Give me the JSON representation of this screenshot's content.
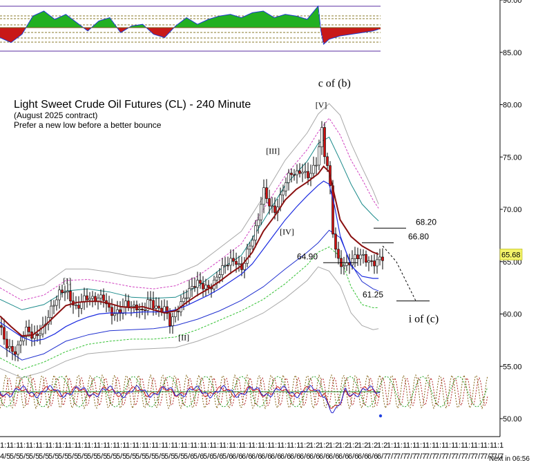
{
  "chart_data": {
    "type": "line",
    "title": "Light Sweet Crude Oil Futures (CL) - 240 Minute",
    "subtitle": "(August 2025 contract)",
    "note": "Prefer a new low before a better bounce",
    "ylim": [
      48,
      90.5
    ],
    "y_ticks": [
      "90.00",
      "85.00",
      "80.00",
      "75.00",
      "70.00",
      "65.00",
      "60.00",
      "55.00",
      "50.00"
    ],
    "y_tick_values": [
      90,
      85,
      80,
      75,
      70,
      65,
      60,
      55,
      50
    ],
    "last_price": "65.68",
    "x_tick_top": "1:1",
    "x_tick_top_alt": "1:2",
    "x_tick_months": [
      "4/5",
      "5/5",
      "5/5",
      "5/5",
      "5/5",
      "5/5",
      "5/5",
      "5/5",
      "5/5",
      "5/5",
      "5/5",
      "5/5",
      "5/5",
      "5/5",
      "5/5",
      "5/5",
      "5/5",
      "5/5",
      "5/5",
      "5/6",
      "5/6",
      "5/6",
      "5/6",
      "5/6",
      "6/6",
      "6/6",
      "6/6",
      "6/6",
      "6/6",
      "6/6",
      "6/6",
      "6/6",
      "6/6",
      "6/6",
      "6/6",
      "6/6",
      "6/6",
      "6/6",
      "6/6",
      "6/7",
      "7/7",
      "7/7",
      "7/7",
      "7/7",
      "7/7",
      "7/7",
      "7/7",
      "7/7",
      "7/7",
      "7/7",
      "7/7",
      "7/7"
    ],
    "countdown": "Next in 06:56",
    "wave_labels": [
      {
        "text": "[I]",
        "x": 24,
        "y": 62.9
      },
      {
        "text": "[II]",
        "x": 66,
        "y": 57.5
      },
      {
        "text": "[III]",
        "x": 98,
        "y": 75.3
      },
      {
        "text": "[IV]",
        "x": 103,
        "y": 67.6
      },
      {
        "text": "[V]",
        "x": 116,
        "y": 79.7
      },
      {
        "text": "c of (b)",
        "x": 117,
        "y": 81.7
      },
      {
        "text": "i of (c)",
        "x": 150,
        "y": 59.2
      }
    ],
    "levels": [
      {
        "label": "68.20",
        "value": 68.2
      },
      {
        "label": "66.80",
        "value": 66.8
      },
      {
        "label": "64.90",
        "value": 64.9
      },
      {
        "label": "61.25",
        "value": 61.25
      }
    ],
    "price_series": {
      "x": [
        0,
        2,
        4,
        6,
        8,
        10,
        12,
        14,
        16,
        18,
        20,
        22,
        24,
        26,
        28,
        30,
        32,
        34,
        36,
        38,
        40,
        42,
        44,
        46,
        48,
        50,
        52,
        54,
        56,
        58,
        60,
        62,
        64,
        66,
        68,
        70,
        72,
        74,
        76,
        78,
        80,
        82,
        84,
        86,
        88,
        90,
        92,
        94,
        96,
        98,
        100,
        102,
        104,
        106,
        108,
        110,
        112,
        114,
        116,
        117,
        118,
        119,
        120,
        121,
        122,
        123,
        124,
        126,
        128,
        130,
        132,
        134,
        136,
        138
      ],
      "close": [
        58.9,
        57.6,
        56.9,
        56.4,
        57.4,
        58.2,
        57.6,
        58.5,
        59.2,
        60.2,
        60.8,
        61.7,
        62.1,
        61.6,
        60.9,
        61.5,
        61.3,
        60.9,
        61.4,
        61.8,
        60.7,
        60.2,
        60.1,
        60.6,
        60.4,
        60.9,
        60.6,
        61.6,
        60.6,
        59.9,
        60.3,
        59.3,
        60.6,
        61.3,
        61.7,
        62.1,
        62.7,
        62.8,
        62.9,
        63.3,
        63.9,
        64.2,
        64.7,
        65.1,
        64.6,
        66.2,
        67.1,
        68.4,
        71.5,
        70.6,
        70.1,
        71.3,
        72.6,
        73.1,
        72.9,
        73.7,
        73.5,
        74.2,
        74.9,
        78.3,
        75.4,
        73.9,
        73.5,
        68.2,
        66.7,
        65.3,
        65.2,
        65.0,
        65.3,
        65.2,
        65.1,
        64.9,
        65.1,
        65.68
      ]
    },
    "ema_fast": {
      "x": [
        0,
        4,
        8,
        12,
        16,
        20,
        24,
        28,
        32,
        36,
        40,
        44,
        48,
        52,
        56,
        60,
        64,
        68,
        72,
        76,
        80,
        84,
        88,
        92,
        96,
        100,
        104,
        108,
        112,
        116,
        118,
        120,
        122,
        124,
        128,
        132,
        136,
        138
      ],
      "values": [
        59.8,
        58.8,
        57.9,
        58.0,
        58.8,
        59.8,
        60.8,
        61.1,
        61.2,
        61.2,
        61.0,
        60.7,
        60.6,
        60.7,
        60.4,
        60.1,
        60.3,
        61.1,
        61.8,
        62.4,
        63.1,
        63.9,
        64.6,
        65.9,
        67.9,
        69.3,
        70.9,
        71.9,
        72.6,
        73.4,
        74.1,
        73.6,
        71.3,
        69.0,
        67.4,
        66.5,
        65.9,
        65.7
      ]
    },
    "ma_slow": {
      "x": [
        0,
        4,
        8,
        12,
        16,
        20,
        24,
        28,
        32,
        36,
        40,
        44,
        48,
        52,
        56,
        60,
        64,
        68,
        72,
        76,
        80,
        84,
        88,
        92,
        96,
        100,
        104,
        108,
        112,
        116,
        118,
        120,
        122,
        124,
        128,
        132,
        136,
        138
      ],
      "values": [
        59.2,
        58.5,
        57.8,
        57.4,
        57.6,
        58.1,
        58.8,
        59.3,
        59.7,
        60.0,
        60.1,
        60.1,
        60.1,
        60.2,
        60.2,
        60.2,
        60.4,
        60.8,
        61.3,
        61.8,
        62.4,
        63.1,
        63.8,
        64.8,
        66.2,
        67.6,
        69.0,
        70.2,
        71.3,
        72.3,
        72.7,
        72.4,
        70.3,
        67.5,
        64.6,
        63.6,
        63.4,
        63.4
      ]
    },
    "band_inner_upper": {
      "x": [
        0,
        8,
        16,
        24,
        32,
        40,
        48,
        56,
        64,
        72,
        80,
        88,
        96,
        104,
        112,
        116,
        120,
        124,
        128,
        132,
        136,
        138
      ],
      "values": [
        61.4,
        60.4,
        60.9,
        62.2,
        62.4,
        62.1,
        61.6,
        61.5,
        61.6,
        62.6,
        64.2,
        65.6,
        68.9,
        72.3,
        74.6,
        76.3,
        76.9,
        74.7,
        72.4,
        70.5,
        69.4,
        68.9
      ]
    },
    "band_inner_lower": {
      "x": [
        0,
        8,
        16,
        24,
        32,
        40,
        48,
        56,
        64,
        72,
        80,
        88,
        96,
        104,
        112,
        116,
        120,
        124,
        128,
        132,
        136,
        138
      ],
      "values": [
        57.0,
        55.6,
        56.2,
        57.4,
        58.0,
        58.4,
        58.5,
        58.6,
        58.9,
        59.5,
        60.3,
        61.3,
        62.6,
        64.3,
        65.9,
        66.8,
        68.0,
        67.3,
        64.8,
        63.1,
        62.4,
        62.2
      ]
    },
    "band_mid_upper": {
      "x": [
        0,
        8,
        16,
        24,
        32,
        40,
        48,
        56,
        64,
        72,
        80,
        88,
        96,
        104,
        112,
        116,
        120,
        124,
        128,
        132,
        136,
        138
      ],
      "values": [
        62.5,
        61.3,
        61.8,
        63.2,
        63.3,
        63.0,
        62.6,
        62.4,
        62.7,
        63.6,
        65.1,
        66.7,
        70.0,
        73.2,
        75.7,
        77.4,
        78.7,
        77.1,
        74.7,
        72.9,
        70.9,
        70.1
      ]
    },
    "band_mid_lower": {
      "x": [
        0,
        8,
        16,
        24,
        32,
        40,
        48,
        56,
        64,
        72,
        80,
        88,
        96,
        104,
        112,
        116,
        120,
        124,
        128,
        132,
        136,
        138
      ],
      "values": [
        55.8,
        54.7,
        55.4,
        56.4,
        57.1,
        57.4,
        57.6,
        57.6,
        57.8,
        58.5,
        59.4,
        60.3,
        61.4,
        62.9,
        64.7,
        65.9,
        66.4,
        65.5,
        62.6,
        60.9,
        60.6,
        60.6
      ]
    },
    "band_outer_upper": {
      "x": [
        0,
        8,
        16,
        24,
        32,
        40,
        48,
        56,
        64,
        72,
        80,
        88,
        96,
        104,
        112,
        116,
        120,
        124,
        128,
        132,
        136,
        138
      ],
      "values": [
        63.4,
        62.3,
        62.8,
        64.3,
        64.3,
        64.0,
        63.6,
        63.4,
        63.8,
        64.7,
        66.3,
        67.9,
        71.2,
        74.7,
        77.3,
        79.1,
        80.1,
        79.0,
        76.3,
        74.0,
        71.8,
        70.5
      ]
    },
    "band_outer_lower": {
      "x": [
        0,
        8,
        16,
        24,
        32,
        40,
        48,
        56,
        64,
        72,
        80,
        88,
        96,
        104,
        112,
        116,
        120,
        124,
        128,
        132,
        136,
        138
      ],
      "values": [
        54.8,
        53.9,
        54.5,
        55.5,
        56.2,
        56.4,
        56.6,
        56.7,
        56.8,
        57.4,
        58.2,
        59.1,
        60.1,
        61.5,
        63.2,
        64.5,
        64.1,
        62.7,
        60.1,
        58.9,
        58.5,
        58.6
      ]
    },
    "forecast_path": {
      "x": [
        138,
        143,
        150
      ],
      "values": [
        66.5,
        65.0,
        61.3
      ]
    },
    "top_oscillator": {
      "x": [
        0,
        4,
        8,
        12,
        16,
        20,
        24,
        28,
        32,
        36,
        40,
        44,
        48,
        52,
        56,
        60,
        64,
        68,
        72,
        76,
        80,
        84,
        88,
        92,
        96,
        100,
        104,
        108,
        112,
        116,
        117,
        118,
        120,
        122,
        124,
        128,
        132,
        136,
        138
      ],
      "values": [
        -0.6,
        -0.9,
        -0.4,
        0.7,
        1.0,
        0.5,
        0.8,
        0.3,
        -0.2,
        0.4,
        0.6,
        -0.3,
        0.1,
        0.2,
        -0.4,
        -0.6,
        0.1,
        0.6,
        0.2,
        0.5,
        0.7,
        0.8,
        0.6,
        0.9,
        1.0,
        0.6,
        0.8,
        0.7,
        0.5,
        1.3,
        -0.2,
        -1.0,
        -0.7,
        -0.6,
        -0.5,
        -0.4,
        -0.3,
        -0.2,
        -0.1
      ]
    },
    "cycle_oscillators": {
      "cycles_visible": true,
      "extend_to_x": 178
    }
  }
}
